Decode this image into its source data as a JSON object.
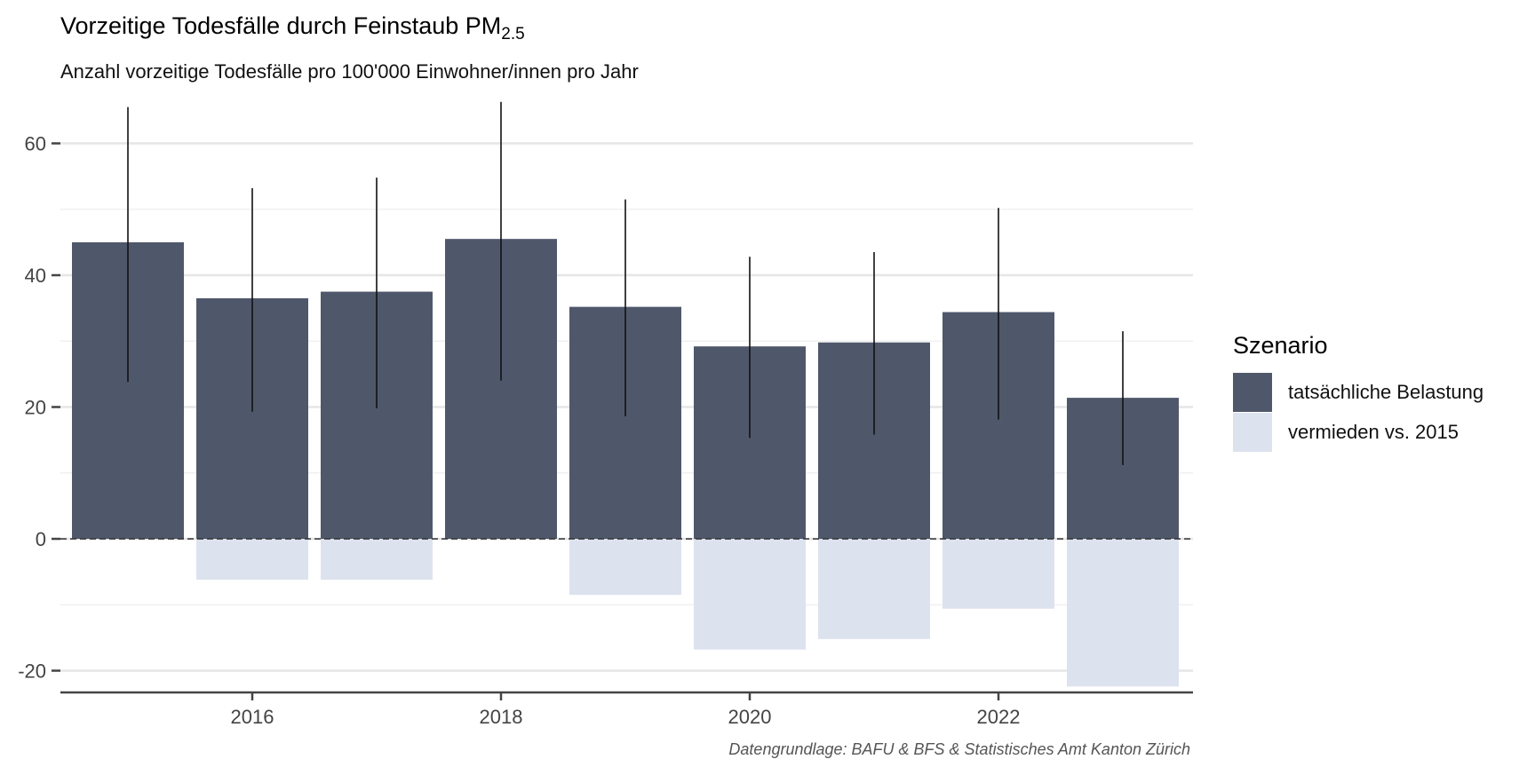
{
  "header": {
    "title_main": "Vorzeitige Todesfälle durch Feinstaub PM",
    "title_sub": "2.5",
    "subtitle": "Anzahl vorzeitige Todesfälle pro 100'000 Einwohner/innen pro Jahr"
  },
  "caption": "Datengrundlage: BAFU & BFS & Statistisches Amt Kanton Zürich",
  "legend": {
    "title": "Szenario",
    "items": [
      {
        "label": "tatsächliche Belastung",
        "color": "#4f586b"
      },
      {
        "label": "vermieden vs. 2015",
        "color": "#dde2ef"
      }
    ]
  },
  "chart_data": {
    "type": "bar",
    "x": [
      2015,
      2016,
      2017,
      2018,
      2019,
      2020,
      2021,
      2022,
      2023
    ],
    "x_ticks": [
      2016,
      2018,
      2020,
      2022
    ],
    "y_ticks": [
      -20,
      0,
      20,
      40,
      60
    ],
    "ylim": [
      -23.5,
      66
    ],
    "series": [
      {
        "name": "tatsächliche Belastung",
        "color": "#4f586b",
        "values": [
          45.0,
          36.5,
          37.5,
          45.5,
          35.2,
          29.2,
          29.8,
          34.4,
          21.4
        ],
        "error_low": [
          23.8,
          19.3,
          19.8,
          24.0,
          18.6,
          15.3,
          15.8,
          18.1,
          11.2
        ],
        "error_high": [
          65.5,
          53.2,
          54.8,
          66.3,
          51.5,
          42.8,
          43.5,
          50.2,
          31.5
        ]
      },
      {
        "name": "vermieden vs. 2015",
        "color": "#dde2ef",
        "values": [
          0,
          -6.2,
          -6.2,
          0,
          -8.5,
          -16.8,
          -15.2,
          -10.6,
          -22.4
        ]
      }
    ],
    "zero_line": "dashed",
    "grid": true
  }
}
